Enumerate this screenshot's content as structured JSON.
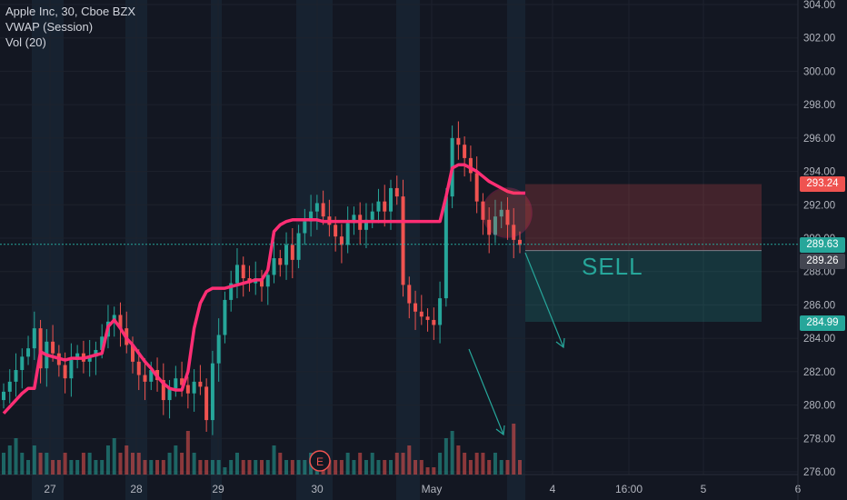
{
  "legend": {
    "symbol": "Apple Inc, 30, Cboe BZX",
    "vwap": "VWAP (Session)",
    "vol": "Vol (20)"
  },
  "colors": {
    "background": "#131722",
    "grid": "#1e222d",
    "up": "#26a69a",
    "down": "#ef5350",
    "vwap": "#ff2e74",
    "session_shade": "#1b2a3a",
    "axis_text": "#b2b5be"
  },
  "price_axis": {
    "ticks": [
      "304.00",
      "302.00",
      "300.00",
      "298.00",
      "296.00",
      "294.00",
      "292.00",
      "290.00",
      "288.00",
      "286.00",
      "284.00",
      "282.00",
      "280.00",
      "278.00",
      "276.00"
    ],
    "range": [
      276,
      304
    ]
  },
  "time_axis": {
    "labels": [
      "27",
      "28",
      "29",
      "30",
      "May",
      "4",
      "16:00",
      "5",
      "6"
    ]
  },
  "price_tags": {
    "stop": "293.24",
    "current": "289.63",
    "entry": "289.26",
    "target": "284.99"
  },
  "annotations": {
    "sell_label": "SELL",
    "earnings_marker": "E"
  },
  "chart_data": {
    "type": "candlestick",
    "series": [
      {
        "name": "Apple Inc, 30, Cboe BZX",
        "close": [
          280.8,
          281.4,
          282.1,
          282.9,
          283.4,
          284.6,
          282.2,
          283.8,
          283.1,
          282.4,
          281.6,
          282.7,
          283.1,
          282.6,
          282.9,
          283.3,
          284.1,
          285.0,
          285.4,
          284.6,
          283.6,
          282.6,
          281.8,
          281.4,
          282.1,
          281.5,
          280.3,
          281.0,
          281.6,
          281.2,
          280.7,
          281.4,
          281.1,
          279.1,
          282.5,
          284.2,
          286.3,
          287.3,
          288.4,
          287.6,
          287.3,
          287.6,
          287.1,
          287.8,
          288.8,
          288.4,
          289.6,
          288.7,
          290.3,
          291.0,
          291.6,
          292.1,
          291.3,
          290.8,
          290.1,
          289.6,
          290.9,
          291.4,
          290.5,
          291.1,
          291.6,
          292.2,
          291.6,
          293.0,
          292.5,
          287.2,
          286.1,
          285.6,
          285.3,
          285.1,
          284.8,
          286.4,
          292.5,
          296.0,
          295.6,
          294.8,
          293.9,
          292.2,
          291.1,
          290.2,
          291.3,
          291.7,
          290.8,
          289.9,
          289.6
        ]
      },
      {
        "name": "VWAP (Session)",
        "values": [
          279.5,
          279.9,
          280.3,
          280.7,
          281.0,
          281.0,
          283.2,
          283.0,
          282.9,
          282.8,
          282.7,
          282.8,
          282.8,
          282.8,
          282.9,
          283.0,
          283.1,
          284.7,
          285.1,
          284.6,
          284.0,
          283.6,
          283.1,
          282.6,
          282.2,
          281.7,
          281.3,
          281.0,
          280.9,
          280.9,
          282.0,
          284.6,
          286.1,
          286.8,
          287.0,
          287.0,
          287.0,
          287.1,
          287.2,
          287.3,
          287.4,
          287.5,
          287.5,
          288.1,
          290.4,
          290.8,
          291.0,
          291.1,
          291.1,
          291.1,
          291.1,
          291.1,
          291.0,
          291.0,
          291.0,
          291.0,
          291.0,
          291.0,
          291.0,
          291.0,
          291.0,
          291.0,
          291.0,
          291.0,
          291.0,
          291.0,
          291.0,
          291.0,
          291.0,
          291.0,
          291.0,
          291.0,
          292.5,
          294.2,
          294.4,
          294.4,
          294.2,
          294.0,
          293.7,
          293.4,
          293.2,
          293.0,
          292.8,
          292.7,
          292.7
        ]
      },
      {
        "name": "Vol (20)",
        "values": [
          3,
          4,
          5,
          3,
          2,
          4,
          3,
          3,
          2,
          2,
          3,
          2,
          2,
          3,
          3,
          2,
          2,
          4,
          5,
          3,
          4,
          3,
          3,
          2,
          2,
          2,
          2,
          3,
          4,
          3,
          6,
          3,
          2,
          2,
          2,
          2,
          1,
          2,
          3,
          2,
          2,
          2,
          2,
          2,
          4,
          3,
          2,
          2,
          2,
          2,
          3,
          2,
          3,
          2,
          2,
          2,
          3,
          2,
          3,
          2,
          3,
          2,
          2,
          2,
          3,
          3,
          4,
          2,
          2,
          1,
          1,
          3,
          5,
          6,
          4,
          3,
          2,
          3,
          3,
          2,
          3,
          2,
          2,
          7,
          2
        ]
      }
    ],
    "ylim": [
      276,
      304
    ]
  }
}
